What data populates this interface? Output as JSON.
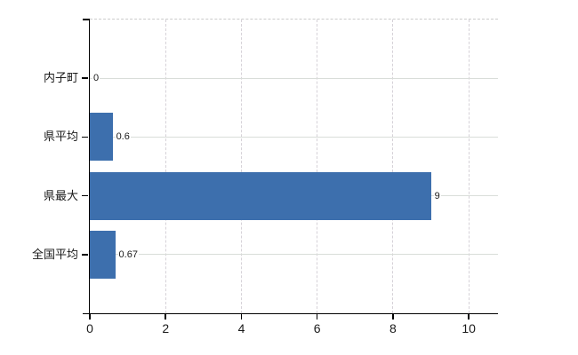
{
  "chart_data": {
    "type": "bar",
    "orientation": "horizontal",
    "title": "",
    "xlabel": "",
    "ylabel": "",
    "categories": [
      "内子町",
      "県平均",
      "県最大",
      "全国平均"
    ],
    "values": [
      0,
      0.6,
      9,
      0.67
    ],
    "value_labels": [
      "0",
      "0.6",
      "9",
      "0.67"
    ],
    "x_ticks": [
      0,
      2,
      4,
      6,
      8,
      10
    ],
    "x_tick_labels": [
      "0",
      "2",
      "4",
      "6",
      "8",
      "10"
    ],
    "xlim": [
      0,
      10.77
    ],
    "grid": true,
    "legend": false,
    "colors": {
      "bar": "#3d6fad",
      "axis": "#000000",
      "gridline_horizontal": "#d9ddd9",
      "gridline_vertical": "#d6d2d8",
      "top_border": "#cccccc",
      "text": "#1a1a1a",
      "background": "#ffffff"
    }
  }
}
